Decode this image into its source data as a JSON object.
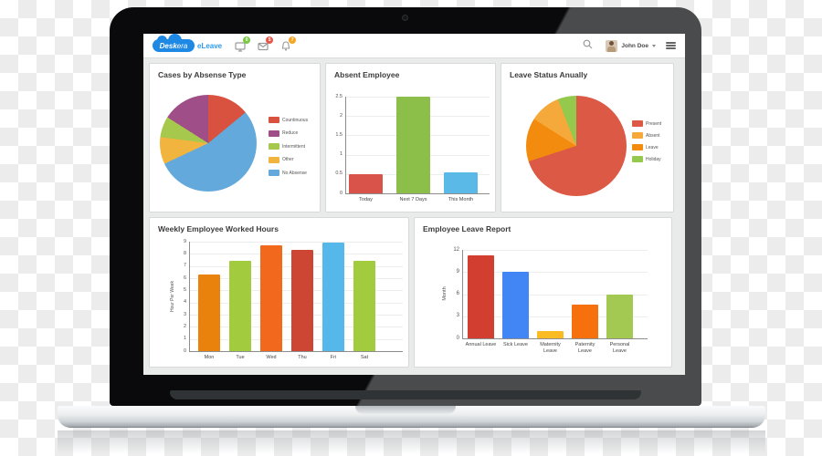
{
  "header": {
    "logo": {
      "brand_bold": "Desk",
      "brand_light": "era",
      "product": "eLeave",
      "cloud_color": "#1e88e5",
      "product_color": "#2e9bf0"
    },
    "notifications": [
      {
        "icon": "monitor-icon",
        "badge": "0",
        "badge_color": "#7ac943"
      },
      {
        "icon": "mail-icon",
        "badge": "5",
        "badge_color": "#e8564a"
      },
      {
        "icon": "bell-icon",
        "badge": "7",
        "badge_color": "#f5a623"
      }
    ],
    "user": {
      "name": "John Doe"
    }
  },
  "chart_data": [
    {
      "type": "pie",
      "title": "Cases by Absense Type",
      "legend_position": "right",
      "segments": [
        {
          "label": "Countinuous",
          "value": 14,
          "color": "#d9513f"
        },
        {
          "label": "Reduce",
          "value": 16,
          "color": "#a04e87"
        },
        {
          "label": "Intermittent",
          "value": 7,
          "color": "#a6c94d"
        },
        {
          "label": "Other",
          "value": 9,
          "color": "#f0b43f"
        },
        {
          "label": "No Absense",
          "value": 54,
          "color": "#64a9dc"
        }
      ],
      "draw_order": [
        0,
        4,
        3,
        2,
        1
      ]
    },
    {
      "type": "bar",
      "title": "Absent Employee",
      "categories": [
        "Today",
        "Next 7 Days",
        "This Month"
      ],
      "values": [
        0.5,
        2.5,
        0.55
      ],
      "colors": [
        "#d9534b",
        "#8cbf4a",
        "#5bb9e8"
      ],
      "xlabel": "",
      "ylabel": "",
      "ylim": [
        0,
        2.5
      ],
      "yticks": [
        0,
        0.5,
        1,
        1.5,
        2,
        2.5
      ],
      "grid": true
    },
    {
      "type": "pie",
      "title": "Leave Status Anually",
      "legend_position": "right",
      "segments": [
        {
          "label": "Present",
          "value": 70,
          "color": "#dc5945"
        },
        {
          "label": "Absent",
          "value": 10,
          "color": "#f5a93a"
        },
        {
          "label": "Leave",
          "value": 14,
          "color": "#f28b0e"
        },
        {
          "label": "Holiday",
          "value": 6,
          "color": "#94c94e"
        }
      ],
      "draw_order": [
        0,
        2,
        1,
        3
      ]
    },
    {
      "type": "bar",
      "title": "Weekly Employee Worked Hours",
      "categories": [
        "Mon",
        "Tue",
        "Wed",
        "Thu",
        "Fri",
        "Sat"
      ],
      "values": [
        6.3,
        7.4,
        8.7,
        8.3,
        8.95,
        7.4
      ],
      "colors": [
        "#e8820d",
        "#a2cb3e",
        "#f2691d",
        "#cd4533",
        "#56b7ea",
        "#a2cb3e"
      ],
      "xlabel": "",
      "ylabel": "Hour Per Week",
      "ylim": [
        0,
        9
      ],
      "yticks": [
        0,
        1,
        2,
        3,
        4,
        5,
        6,
        7,
        8,
        9
      ],
      "grid": true
    },
    {
      "type": "bar",
      "title": "Employee Leave Report",
      "categories": [
        "Annual Leave",
        "Sick Leave",
        "Maternity Leave",
        "Paternity Leave",
        "Personal Leave"
      ],
      "values": [
        11.3,
        9,
        1,
        4.6,
        6
      ],
      "colors": [
        "#d23f31",
        "#4285f4",
        "#fbbc23",
        "#f7700e",
        "#a4c953"
      ],
      "xlabel": "",
      "ylabel": "Month",
      "ylim": [
        0,
        12
      ],
      "yticks": [
        0,
        3,
        6,
        9,
        12
      ],
      "grid": true
    }
  ]
}
